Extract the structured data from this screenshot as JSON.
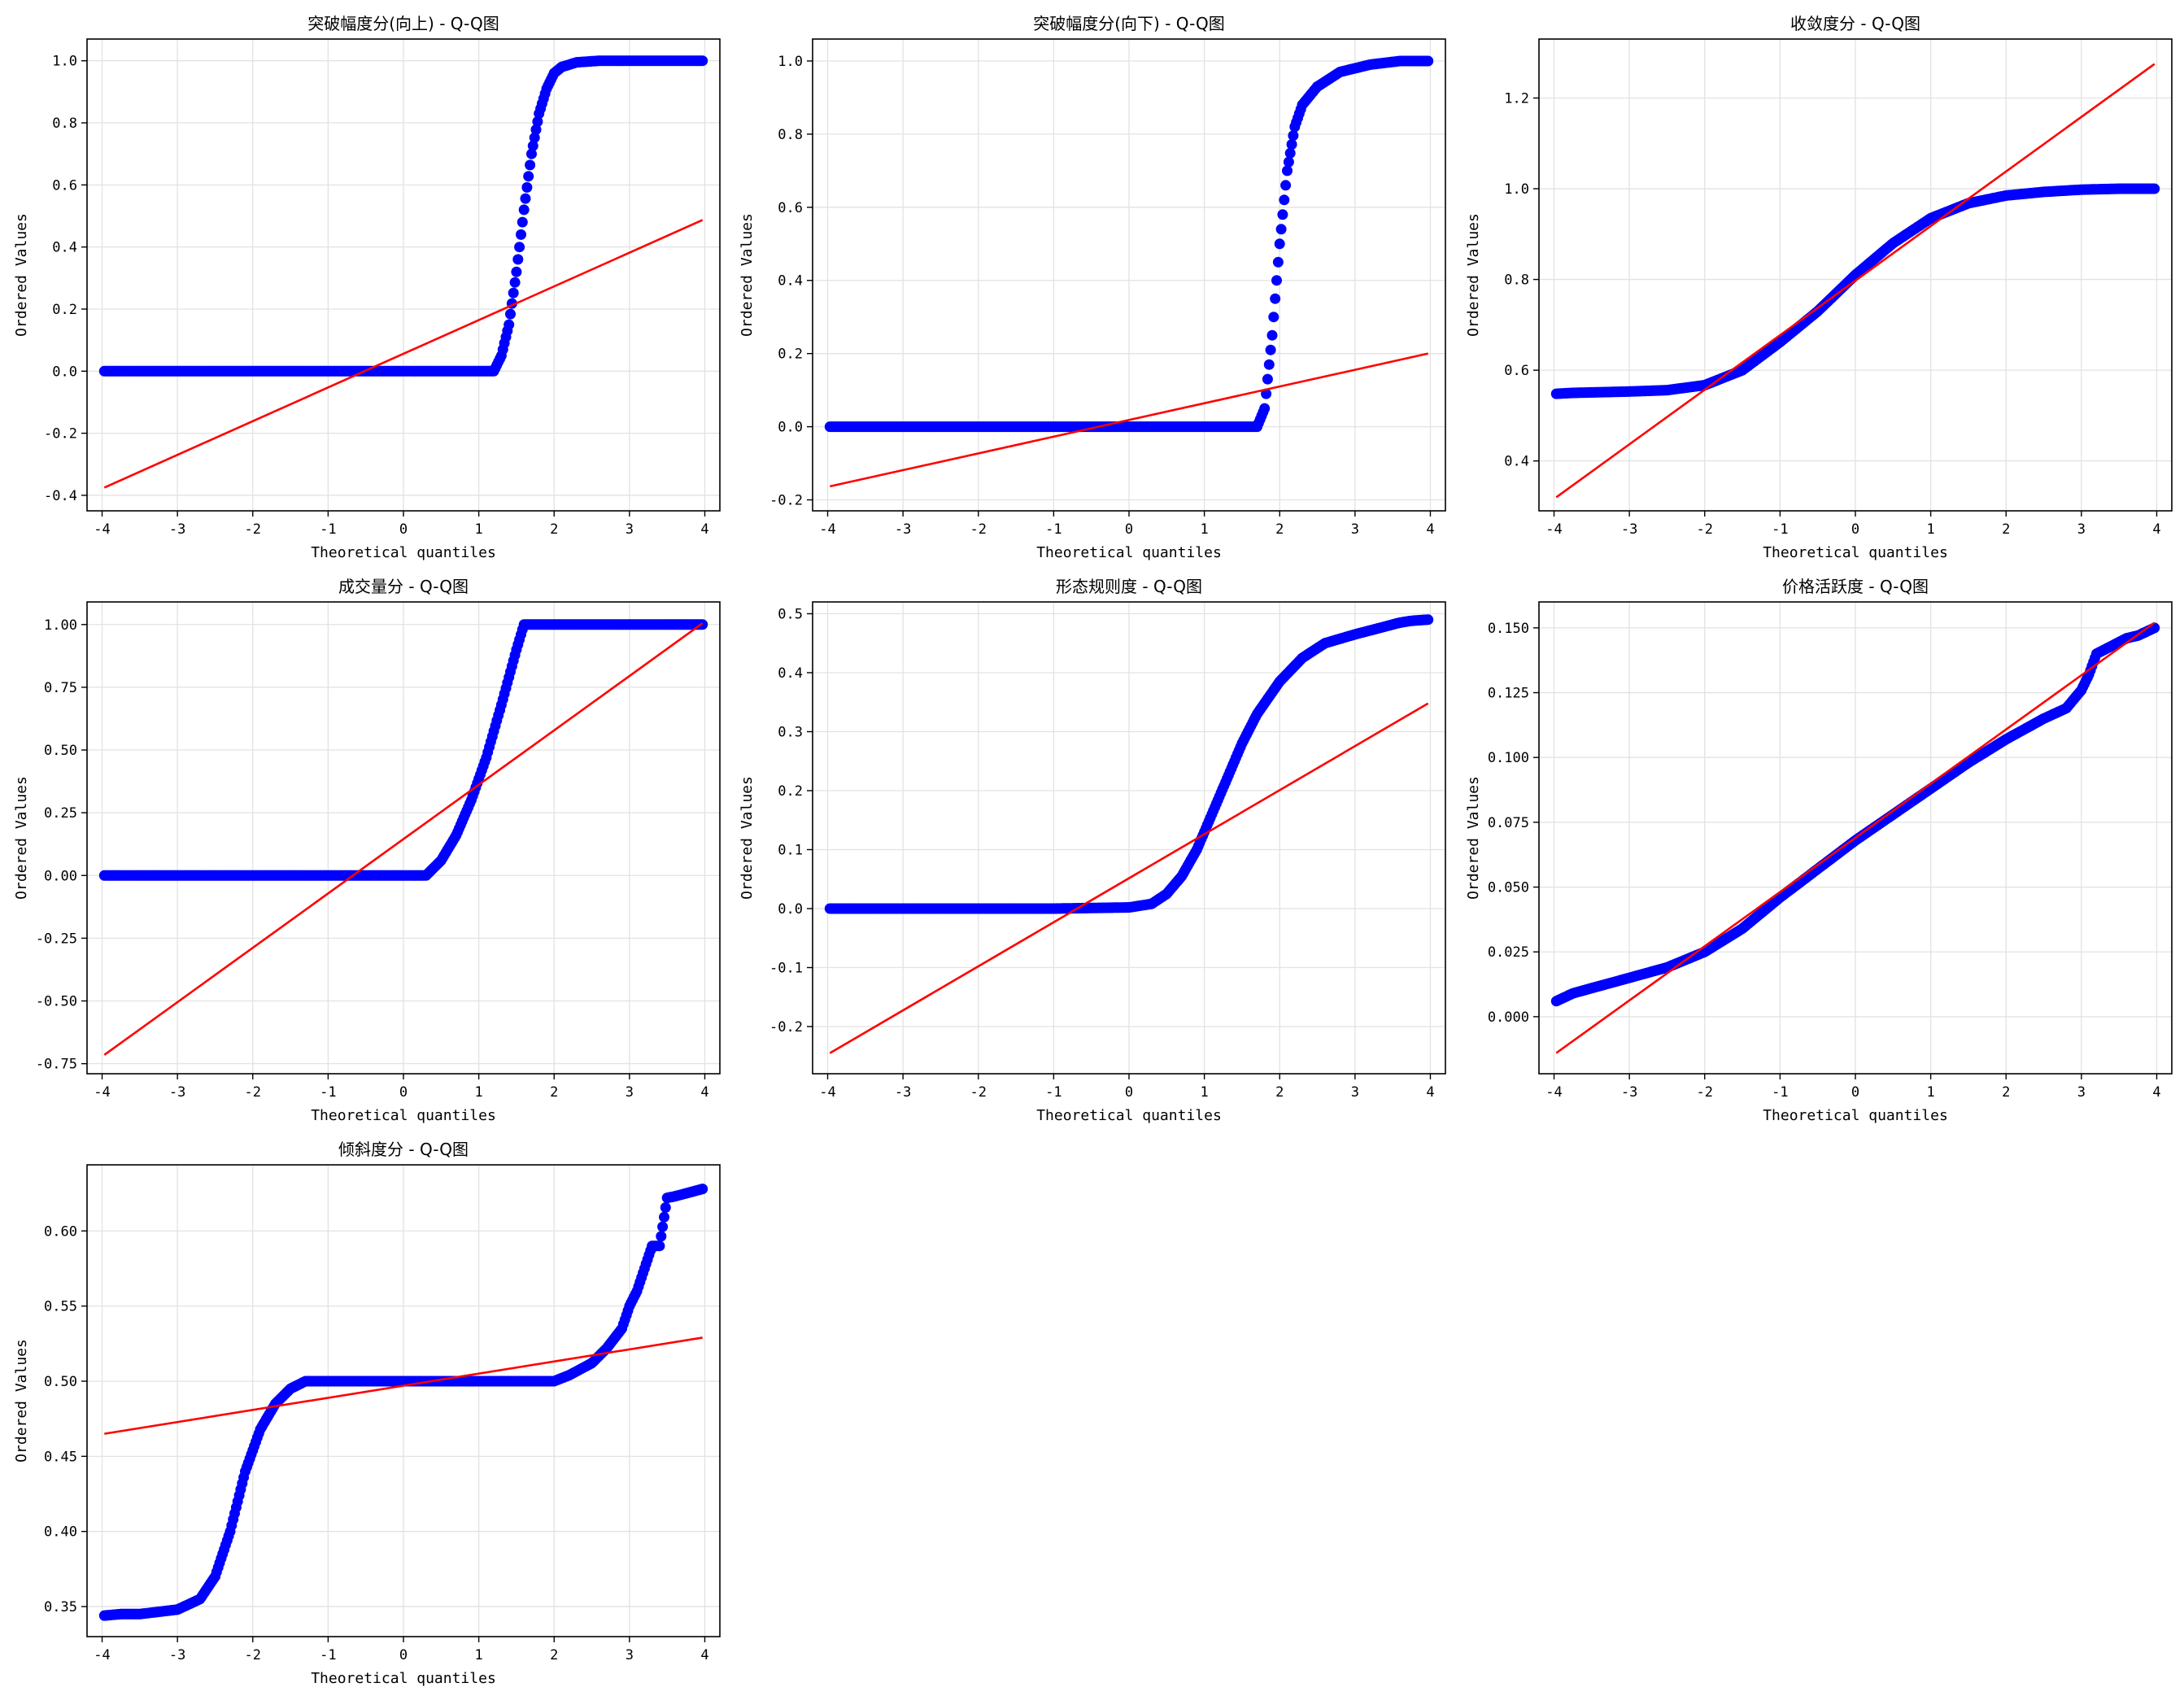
{
  "chart_data": [
    {
      "type": "scatter",
      "title": "突破幅度分(向上) - Q-Q图",
      "xlabel": "Theoretical quantiles",
      "ylabel": "Ordered Values",
      "xlim": [
        -4.2,
        4.2
      ],
      "ylim": [
        -0.45,
        1.07
      ],
      "xticks": [
        -4,
        -3,
        -2,
        -1,
        0,
        1,
        2,
        3,
        4
      ],
      "yticks": [
        -0.4,
        -0.2,
        0.0,
        0.2,
        0.4,
        0.6,
        0.8,
        1.0
      ],
      "ytick_labels": [
        "-0.4",
        "-0.2",
        "0.0",
        "0.2",
        "0.4",
        "0.6",
        "0.8",
        "1.0"
      ],
      "grid": true,
      "fit_line": {
        "x": [
          -3.97,
          3.97
        ],
        "y": [
          -0.375,
          0.487
        ]
      },
      "points": [
        [
          -3.97,
          0.0
        ],
        [
          -3.75,
          0.0
        ],
        [
          -3.6,
          0.0
        ],
        [
          -3.0,
          0.0
        ],
        [
          -2.0,
          0.0
        ],
        [
          -1.0,
          0.0
        ],
        [
          0.0,
          0.0
        ],
        [
          1.0,
          0.0
        ],
        [
          1.2,
          0.0
        ],
        [
          1.3,
          0.05
        ],
        [
          1.4,
          0.15
        ],
        [
          1.5,
          0.32
        ],
        [
          1.6,
          0.52
        ],
        [
          1.7,
          0.7
        ],
        [
          1.8,
          0.83
        ],
        [
          1.9,
          0.91
        ],
        [
          2.0,
          0.96
        ],
        [
          2.1,
          0.98
        ],
        [
          2.3,
          0.995
        ],
        [
          2.6,
          1.0
        ],
        [
          3.0,
          1.0
        ],
        [
          3.4,
          1.0
        ],
        [
          3.6,
          1.0
        ],
        [
          3.75,
          1.0
        ],
        [
          3.97,
          1.0
        ]
      ]
    },
    {
      "type": "scatter",
      "title": "突破幅度分(向下) - Q-Q图",
      "xlabel": "Theoretical quantiles",
      "ylabel": "Ordered Values",
      "xlim": [
        -4.2,
        4.2
      ],
      "ylim": [
        -0.23,
        1.06
      ],
      "xticks": [
        -4,
        -3,
        -2,
        -1,
        0,
        1,
        2,
        3,
        4
      ],
      "yticks": [
        -0.2,
        0.0,
        0.2,
        0.4,
        0.6,
        0.8,
        1.0
      ],
      "ytick_labels": [
        "-0.2",
        "0.0",
        "0.2",
        "0.4",
        "0.6",
        "0.8",
        "1.0"
      ],
      "grid": true,
      "fit_line": {
        "x": [
          -3.97,
          3.97
        ],
        "y": [
          -0.163,
          0.2
        ]
      },
      "points": [
        [
          -3.97,
          0.0
        ],
        [
          -3.75,
          0.0
        ],
        [
          -3.6,
          0.0
        ],
        [
          -3.0,
          0.0
        ],
        [
          -2.0,
          0.0
        ],
        [
          -1.0,
          0.0
        ],
        [
          0.0,
          0.0
        ],
        [
          1.0,
          0.0
        ],
        [
          1.7,
          0.0
        ],
        [
          1.8,
          0.05
        ],
        [
          1.9,
          0.25
        ],
        [
          2.0,
          0.5
        ],
        [
          2.1,
          0.7
        ],
        [
          2.2,
          0.82
        ],
        [
          2.3,
          0.88
        ],
        [
          2.5,
          0.93
        ],
        [
          2.8,
          0.97
        ],
        [
          3.2,
          0.99
        ],
        [
          3.6,
          1.0
        ],
        [
          3.75,
          1.0
        ],
        [
          3.97,
          1.0
        ]
      ]
    },
    {
      "type": "scatter",
      "title": "收敛度分 - Q-Q图",
      "xlabel": "Theoretical quantiles",
      "ylabel": "Ordered Values",
      "xlim": [
        -4.2,
        4.2
      ],
      "ylim": [
        0.29,
        1.33
      ],
      "xticks": [
        -4,
        -3,
        -2,
        -1,
        0,
        1,
        2,
        3,
        4
      ],
      "yticks": [
        0.4,
        0.6,
        0.8,
        1.0,
        1.2
      ],
      "ytick_labels": [
        "0.4",
        "0.6",
        "0.8",
        "1.0",
        "1.2"
      ],
      "grid": true,
      "fit_line": {
        "x": [
          -3.97,
          3.97
        ],
        "y": [
          0.32,
          1.275
        ]
      },
      "points": [
        [
          -3.97,
          0.548
        ],
        [
          -3.75,
          0.55
        ],
        [
          -3.5,
          0.551
        ],
        [
          -3.0,
          0.553
        ],
        [
          -2.5,
          0.556
        ],
        [
          -2.0,
          0.567
        ],
        [
          -1.5,
          0.6
        ],
        [
          -1.0,
          0.662
        ],
        [
          -0.5,
          0.73
        ],
        [
          0.0,
          0.81
        ],
        [
          0.5,
          0.88
        ],
        [
          1.0,
          0.935
        ],
        [
          1.5,
          0.968
        ],
        [
          2.0,
          0.985
        ],
        [
          2.5,
          0.993
        ],
        [
          3.0,
          0.998
        ],
        [
          3.5,
          1.0
        ],
        [
          3.75,
          1.0
        ],
        [
          3.97,
          1.0
        ]
      ]
    },
    {
      "type": "scatter",
      "title": "成交量分 - Q-Q图",
      "xlabel": "Theoretical quantiles",
      "ylabel": "Ordered Values",
      "xlim": [
        -4.2,
        4.2
      ],
      "ylim": [
        -0.79,
        1.09
      ],
      "xticks": [
        -4,
        -3,
        -2,
        -1,
        0,
        1,
        2,
        3,
        4
      ],
      "yticks": [
        -0.75,
        -0.5,
        -0.25,
        0.0,
        0.25,
        0.5,
        0.75,
        1.0
      ],
      "ytick_labels": [
        "-0.75",
        "-0.50",
        "-0.25",
        "0.00",
        "0.25",
        "0.50",
        "0.75",
        "1.00"
      ],
      "grid": true,
      "fit_line": {
        "x": [
          -3.97,
          3.97
        ],
        "y": [
          -0.715,
          1.005
        ]
      },
      "points": [
        [
          -3.97,
          0.0
        ],
        [
          -3.75,
          0.0
        ],
        [
          -3.6,
          0.0
        ],
        [
          -3.0,
          0.0
        ],
        [
          -2.0,
          0.0
        ],
        [
          -1.0,
          0.0
        ],
        [
          0.0,
          0.0
        ],
        [
          0.3,
          0.0
        ],
        [
          0.5,
          0.06
        ],
        [
          0.7,
          0.16
        ],
        [
          0.9,
          0.3
        ],
        [
          1.1,
          0.47
        ],
        [
          1.3,
          0.68
        ],
        [
          1.5,
          0.9
        ],
        [
          1.6,
          1.0
        ],
        [
          2.0,
          1.0
        ],
        [
          2.5,
          1.0
        ],
        [
          3.0,
          1.0
        ],
        [
          3.5,
          1.0
        ],
        [
          3.75,
          1.0
        ],
        [
          3.97,
          1.0
        ]
      ]
    },
    {
      "type": "scatter",
      "title": "形态规则度 - Q-Q图",
      "xlabel": "Theoretical quantiles",
      "ylabel": "Ordered Values",
      "xlim": [
        -4.2,
        4.2
      ],
      "ylim": [
        -0.28,
        0.52
      ],
      "xticks": [
        -4,
        -3,
        -2,
        -1,
        0,
        1,
        2,
        3,
        4
      ],
      "yticks": [
        -0.2,
        -0.1,
        0.0,
        0.1,
        0.2,
        0.3,
        0.4,
        0.5
      ],
      "ytick_labels": [
        "-0.2",
        "-0.1",
        "0.0",
        "0.1",
        "0.2",
        "0.3",
        "0.4",
        "0.5"
      ],
      "grid": true,
      "fit_line": {
        "x": [
          -3.97,
          3.97
        ],
        "y": [
          -0.245,
          0.348
        ]
      },
      "points": [
        [
          -3.97,
          0.0
        ],
        [
          -3.75,
          0.0
        ],
        [
          -3.5,
          0.0
        ],
        [
          -3.0,
          0.0
        ],
        [
          -2.0,
          0.0
        ],
        [
          -1.0,
          0.0
        ],
        [
          0.0,
          0.002
        ],
        [
          0.3,
          0.008
        ],
        [
          0.5,
          0.025
        ],
        [
          0.7,
          0.055
        ],
        [
          0.9,
          0.1
        ],
        [
          1.1,
          0.16
        ],
        [
          1.3,
          0.22
        ],
        [
          1.5,
          0.28
        ],
        [
          1.7,
          0.33
        ],
        [
          2.0,
          0.385
        ],
        [
          2.3,
          0.425
        ],
        [
          2.6,
          0.45
        ],
        [
          3.0,
          0.465
        ],
        [
          3.3,
          0.475
        ],
        [
          3.6,
          0.485
        ],
        [
          3.75,
          0.488
        ],
        [
          3.97,
          0.49
        ]
      ]
    },
    {
      "type": "scatter",
      "title": "价格活跃度 - Q-Q图",
      "xlabel": "Theoretical quantiles",
      "ylabel": "Ordered Values",
      "xlim": [
        -4.2,
        4.2
      ],
      "ylim": [
        -0.022,
        0.16
      ],
      "xticks": [
        -4,
        -3,
        -2,
        -1,
        0,
        1,
        2,
        3,
        4
      ],
      "yticks": [
        0.0,
        0.025,
        0.05,
        0.075,
        0.1,
        0.125,
        0.15
      ],
      "ytick_labels": [
        "0.000",
        "0.025",
        "0.050",
        "0.075",
        "0.100",
        "0.125",
        "0.150"
      ],
      "grid": true,
      "fit_line": {
        "x": [
          -3.97,
          3.97
        ],
        "y": [
          -0.014,
          0.152
        ]
      },
      "points": [
        [
          -3.97,
          0.006
        ],
        [
          -3.75,
          0.009
        ],
        [
          -3.5,
          0.011
        ],
        [
          -3.0,
          0.015
        ],
        [
          -2.5,
          0.019
        ],
        [
          -2.0,
          0.025
        ],
        [
          -1.5,
          0.034
        ],
        [
          -1.0,
          0.046
        ],
        [
          -0.5,
          0.057
        ],
        [
          0.0,
          0.068
        ],
        [
          0.5,
          0.078
        ],
        [
          1.0,
          0.088
        ],
        [
          1.5,
          0.098
        ],
        [
          2.0,
          0.107
        ],
        [
          2.5,
          0.115
        ],
        [
          2.8,
          0.119
        ],
        [
          3.0,
          0.126
        ],
        [
          3.1,
          0.132
        ],
        [
          3.2,
          0.14
        ],
        [
          3.4,
          0.143
        ],
        [
          3.6,
          0.146
        ],
        [
          3.75,
          0.147
        ],
        [
          3.97,
          0.15
        ]
      ]
    },
    {
      "type": "scatter",
      "title": "倾斜度分 - Q-Q图",
      "xlabel": "Theoretical quantiles",
      "ylabel": "Ordered Values",
      "xlim": [
        -4.2,
        4.2
      ],
      "ylim": [
        0.33,
        0.644
      ],
      "xticks": [
        -4,
        -3,
        -2,
        -1,
        0,
        1,
        2,
        3,
        4
      ],
      "yticks": [
        0.35,
        0.4,
        0.45,
        0.5,
        0.55,
        0.6
      ],
      "ytick_labels": [
        "0.35",
        "0.40",
        "0.45",
        "0.50",
        "0.55",
        "0.60"
      ],
      "grid": true,
      "fit_line": {
        "x": [
          -3.97,
          3.97
        ],
        "y": [
          0.465,
          0.529
        ]
      },
      "points": [
        [
          -3.97,
          0.344
        ],
        [
          -3.75,
          0.345
        ],
        [
          -3.5,
          0.345
        ],
        [
          -3.0,
          0.348
        ],
        [
          -2.7,
          0.355
        ],
        [
          -2.5,
          0.37
        ],
        [
          -2.3,
          0.4
        ],
        [
          -2.1,
          0.44
        ],
        [
          -1.9,
          0.468
        ],
        [
          -1.7,
          0.485
        ],
        [
          -1.5,
          0.495
        ],
        [
          -1.3,
          0.5
        ],
        [
          -1.0,
          0.5
        ],
        [
          0.0,
          0.5
        ],
        [
          1.0,
          0.5
        ],
        [
          2.0,
          0.5
        ],
        [
          2.2,
          0.504
        ],
        [
          2.5,
          0.512
        ],
        [
          2.7,
          0.522
        ],
        [
          2.9,
          0.535
        ],
        [
          3.0,
          0.55
        ],
        [
          3.1,
          0.56
        ],
        [
          3.2,
          0.575
        ],
        [
          3.3,
          0.59
        ],
        [
          3.4,
          0.59
        ],
        [
          3.5,
          0.622
        ],
        [
          3.6,
          0.623
        ],
        [
          3.75,
          0.625
        ],
        [
          3.97,
          0.628
        ]
      ]
    }
  ],
  "colors": {
    "points": "#0000ff",
    "fit_line": "#ff0000",
    "grid": "#e2e2e2",
    "axes": "#000000"
  }
}
